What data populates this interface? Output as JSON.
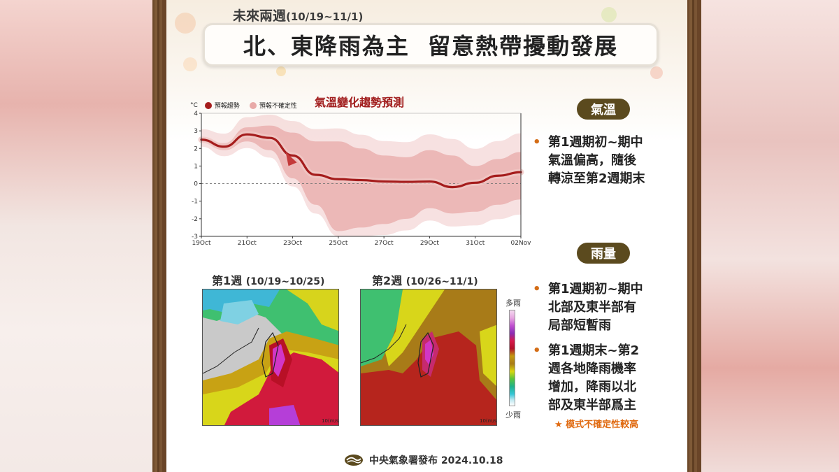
{
  "header": {
    "subtitle": "未來兩週",
    "date_range": "(10/19~11/1)",
    "title": "北、東降雨為主  留意熱帶擾動發展"
  },
  "chart": {
    "title": "氣溫變化趨勢預測",
    "legend_forecast": "預報趨勢",
    "legend_uncertainty": "預報不確定性",
    "y_unit": "°C"
  },
  "chart_data": {
    "type": "line",
    "title": "氣溫變化趨勢預測",
    "ylabel": "°C",
    "ylim": [
      -3,
      4
    ],
    "x_tick_labels": [
      "19Oct",
      "21Oct",
      "23Oct",
      "25Oct",
      "27Oct",
      "29Oct",
      "31Oct",
      "02Nov"
    ],
    "y_tick_labels": [
      "4",
      "3",
      "2",
      "1",
      "0",
      "-1",
      "-2",
      "-3"
    ],
    "grid": false,
    "legend_position": "top-left",
    "series": [
      {
        "name": "預報趨勢",
        "x": [
          "10/19",
          "10/20",
          "10/21",
          "10/22",
          "10/23",
          "10/24",
          "10/25",
          "10/26",
          "10/27",
          "10/28",
          "10/29",
          "10/30",
          "10/31",
          "11/1",
          "11/2"
        ],
        "values": [
          2.5,
          2.1,
          2.8,
          2.6,
          1.6,
          0.5,
          0.25,
          0.2,
          0.12,
          0.1,
          0.12,
          -0.2,
          0.05,
          0.45,
          0.65
        ]
      },
      {
        "name": "預報不確定性",
        "x": [
          "10/19",
          "10/20",
          "10/21",
          "10/22",
          "10/23",
          "10/24",
          "10/25",
          "10/26",
          "10/27",
          "10/28",
          "10/29",
          "10/30",
          "10/31",
          "11/1",
          "11/2"
        ],
        "upper": [
          2.6,
          2.3,
          3.2,
          3.3,
          2.9,
          2.4,
          2.4,
          2.0,
          1.6,
          1.5,
          1.9,
          1.6,
          1.0,
          1.4,
          1.8
        ],
        "lower": [
          2.4,
          1.9,
          2.4,
          1.9,
          0.3,
          -1.2,
          -2.7,
          -2.5,
          -2.3,
          -2.0,
          -1.4,
          -1.7,
          -1.6,
          -1.2,
          -0.9
        ]
      }
    ],
    "reference_line": 0
  },
  "temperature": {
    "label": "氣溫",
    "bullets": [
      [
        "第1週期初~期中",
        "氣溫偏高，隨後",
        "轉涼至第2週期末"
      ]
    ]
  },
  "rain": {
    "label": "雨量",
    "bullets": [
      [
        "第1週期初~期中",
        "北部及東半部有",
        "局部短暫雨"
      ],
      [
        "第1週期末~第2",
        "週各地降雨機率",
        "增加，降雨以北",
        "部及東半部爲主"
      ]
    ],
    "note": "★ 模式不確定性較高"
  },
  "maps": {
    "week1_title": "第1週",
    "week1_range": "(10/19~10/25)",
    "week2_title": "第2週",
    "week2_range": "(10/26~11/1)",
    "wind_scale": "10(m/s)",
    "scale_top": "多雨",
    "scale_bottom": "少雨"
  },
  "footer": {
    "text": "中央氣象署發布 2024.10.18"
  },
  "colors": {
    "forecast_line": "#a51c1c",
    "uncertainty_band": "#e8aaa8",
    "pill_bg": "#5b4a1e",
    "bullet": "#d46d17",
    "note": "#e06a10"
  }
}
